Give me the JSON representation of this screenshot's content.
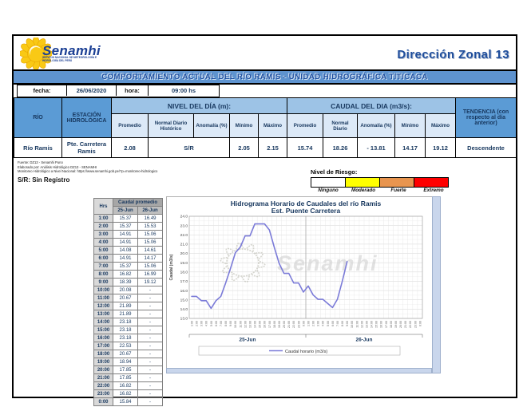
{
  "header": {
    "logo_text": "Senamhi",
    "logo_tagline": "SERVICIO NACIONAL DE METEOROLOGÍA E HIDROLOGÍA DEL PERÚ",
    "zone_title": "Dirección Zonal 13"
  },
  "title_bar": "COMPORTAMIENTO ACTUAL DEL RÍO RAMIS - UNIDAD HIDROGRÁFICA  TITICACA",
  "datetime_row": {
    "fecha_label": "fecha:",
    "fecha_value": "26/06/2020",
    "hora_label": "hora:",
    "hora_value": "09:00 hs"
  },
  "main_table": {
    "col_rio": "RÍO",
    "col_estacion": "ESTACIÓN HIDROLÓGICA",
    "group_nivel": "NIVEL DEL DÍA (m):",
    "group_caudal": "CAUDAL DEL DIA (m3/s):",
    "col_tendencia": "TENDENCIA (con respecto al día anterior)",
    "nivel_subcols": [
      "Promedio",
      "Normal Diario Histórico",
      "Anomalía (%)",
      "Mínimo",
      "Máximo"
    ],
    "caudal_subcols": [
      "Promedio",
      "Normal Diario",
      "Anomalía (%)",
      "Mínimo",
      "Máximo"
    ],
    "row": {
      "rio": "Río Ramis",
      "estacion": "Pte. Carretera Ramis",
      "nivel_promedio": "2.08",
      "nivel_normal_anomalia": "S/R",
      "nivel_minimo": "2.05",
      "nivel_maximo": "2.15",
      "caudal_promedio": "15.74",
      "caudal_normal": "18.26",
      "caudal_anomalia": "- 13.81",
      "caudal_minimo": "14.17",
      "caudal_maximo": "19.12",
      "tendencia": "Descendente"
    }
  },
  "notes": {
    "line1": "Fuente: DZ13 - Senamhi Puno",
    "line2": "Elaborado por: Análisis Hidrológico DZ13 - SENAMHI",
    "line3": "Monitoreo Hidrológico a Nivel Nacional: https://www.senamhi.gob.pe/?p=monitoreo-hidrologico",
    "sr_note": "S/R: Sin Registro"
  },
  "risk_legend": {
    "title": "Nivel de Riesgo:",
    "levels": [
      {
        "label": "Ninguno",
        "color": "#FFFFFF"
      },
      {
        "label": "Moderado",
        "color": "#FFFF00"
      },
      {
        "label": "Fuerte",
        "color": "#E8954F"
      },
      {
        "label": "Extremo",
        "color": "#FF0000"
      }
    ]
  },
  "hourly_table": {
    "col_hrs": "Hrs",
    "group_caudal": "Caudal promedio",
    "day_cols": [
      "25-Jun",
      "26-Jun"
    ],
    "rows": [
      {
        "hr": "1:00",
        "d1": "15.37",
        "d2": "16.49"
      },
      {
        "hr": "2:00",
        "d1": "15.37",
        "d2": "15.53"
      },
      {
        "hr": "3:00",
        "d1": "14.91",
        "d2": "15.06"
      },
      {
        "hr": "4:00",
        "d1": "14.91",
        "d2": "15.06"
      },
      {
        "hr": "5:00",
        "d1": "14.08",
        "d2": "14.61"
      },
      {
        "hr": "6:00",
        "d1": "14.91",
        "d2": "14.17"
      },
      {
        "hr": "7:00",
        "d1": "15.37",
        "d2": "15.06"
      },
      {
        "hr": "8:00",
        "d1": "16.82",
        "d2": "16.99"
      },
      {
        "hr": "9:00",
        "d1": "18.39",
        "d2": "19.12"
      },
      {
        "hr": "10:00",
        "d1": "20.08",
        "d2": "-"
      },
      {
        "hr": "11:00",
        "d1": "20.67",
        "d2": "-"
      },
      {
        "hr": "12:00",
        "d1": "21.89",
        "d2": "-"
      },
      {
        "hr": "13:00",
        "d1": "21.89",
        "d2": "-"
      },
      {
        "hr": "14:00",
        "d1": "23.18",
        "d2": "-"
      },
      {
        "hr": "15:00",
        "d1": "23.18",
        "d2": "-"
      },
      {
        "hr": "16:00",
        "d1": "23.18",
        "d2": "-"
      },
      {
        "hr": "17:00",
        "d1": "22.53",
        "d2": "-"
      },
      {
        "hr": "18:00",
        "d1": "20.67",
        "d2": "-"
      },
      {
        "hr": "19:00",
        "d1": "18.94",
        "d2": "-"
      },
      {
        "hr": "20:00",
        "d1": "17.85",
        "d2": "-"
      },
      {
        "hr": "21:00",
        "d1": "17.85",
        "d2": "-"
      },
      {
        "hr": "22:00",
        "d1": "16.82",
        "d2": "-"
      },
      {
        "hr": "23:00",
        "d1": "16.82",
        "d2": "-"
      },
      {
        "hr": "0:00",
        "d1": "15.84",
        "d2": "-"
      }
    ]
  },
  "chart_data": {
    "type": "line",
    "title": "Hidrograma Horario de Caudales del río Ramis",
    "subtitle": "Est. Puente Carretera",
    "ylabel": "Caudal (m3/s)",
    "ylim": [
      13.0,
      24.0
    ],
    "ytick_step": 1.0,
    "grid": true,
    "legend_position": "bottom",
    "hour_labels": [
      "1:00",
      "2:00",
      "3:00",
      "4:00",
      "5:00",
      "6:00",
      "7:00",
      "8:00",
      "9:00",
      "10:00",
      "11:00",
      "12:00",
      "13:00",
      "14:00",
      "15:00",
      "16:00",
      "17:00",
      "18:00",
      "19:00",
      "20:00",
      "21:00",
      "22:00",
      "23:00",
      "0:00"
    ],
    "day_labels": [
      "25-Jun",
      "26-Jun"
    ],
    "series": [
      {
        "name": "Caudal horario (m3/s)",
        "color": "#7B7BD8",
        "values_25jun": [
          15.37,
          15.37,
          14.91,
          14.91,
          14.08,
          14.91,
          15.37,
          16.82,
          18.39,
          20.08,
          20.67,
          21.89,
          21.89,
          23.18,
          23.18,
          23.18,
          22.53,
          20.67,
          18.94,
          17.85,
          17.85,
          16.82,
          16.82,
          15.84
        ],
        "values_26jun": [
          16.49,
          15.53,
          15.06,
          15.06,
          14.61,
          14.17,
          15.06,
          16.99,
          19.12
        ]
      }
    ],
    "watermark": "Senamhi"
  }
}
